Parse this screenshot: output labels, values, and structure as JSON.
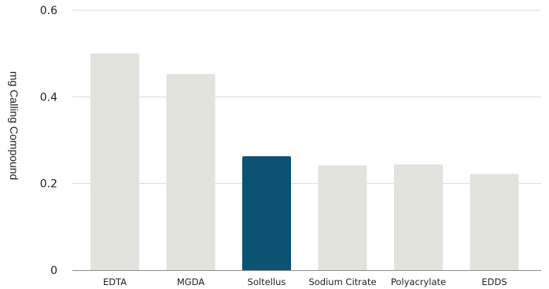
{
  "chart_data": {
    "type": "bar",
    "categories": [
      "EDTA",
      "MGDA",
      "Soltellus",
      "Sodium Citrate",
      "Polyacrylate",
      "EDDS"
    ],
    "values": [
      0.5,
      0.453,
      0.263,
      0.242,
      0.244,
      0.222
    ],
    "ylabel": "mg Calling Compound",
    "ylim": [
      0,
      0.6
    ],
    "yticks": [
      0,
      0.2,
      0.4,
      0.6
    ],
    "ytick_labels": [
      "0",
      "0.2",
      "0.4",
      "0.6"
    ],
    "grid": true,
    "bar_color": "#e2e3dd",
    "highlight_color": "#0b5273",
    "highlight_index": 2,
    "gridline_color": "#d9d9d9",
    "axis_color": "#8c8c8c"
  }
}
